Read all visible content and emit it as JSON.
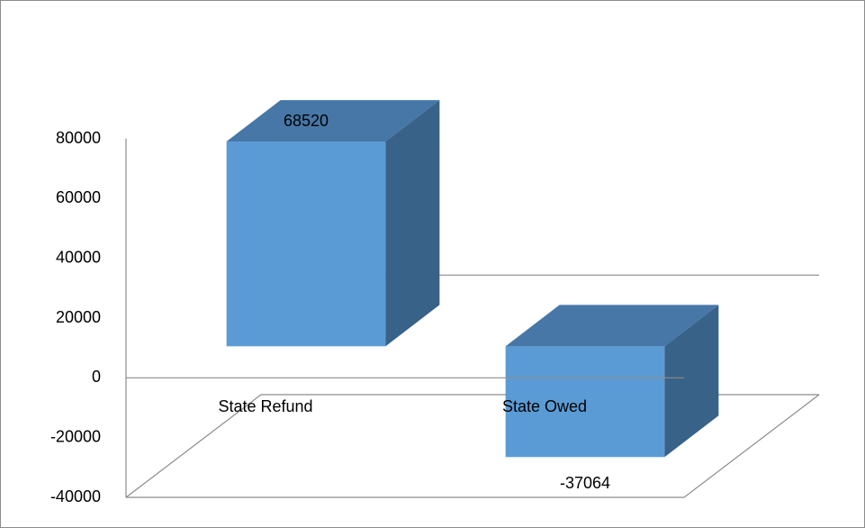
{
  "chart_data": {
    "type": "bar3d",
    "categories": [
      "State Refund",
      "State Owed"
    ],
    "values": [
      68520,
      -37064
    ],
    "color": "#5b9bd5",
    "ylim": [
      -40000,
      80000
    ],
    "yticks": [
      -40000,
      -20000,
      0,
      20000,
      40000,
      60000,
      80000
    ],
    "grid": false
  }
}
